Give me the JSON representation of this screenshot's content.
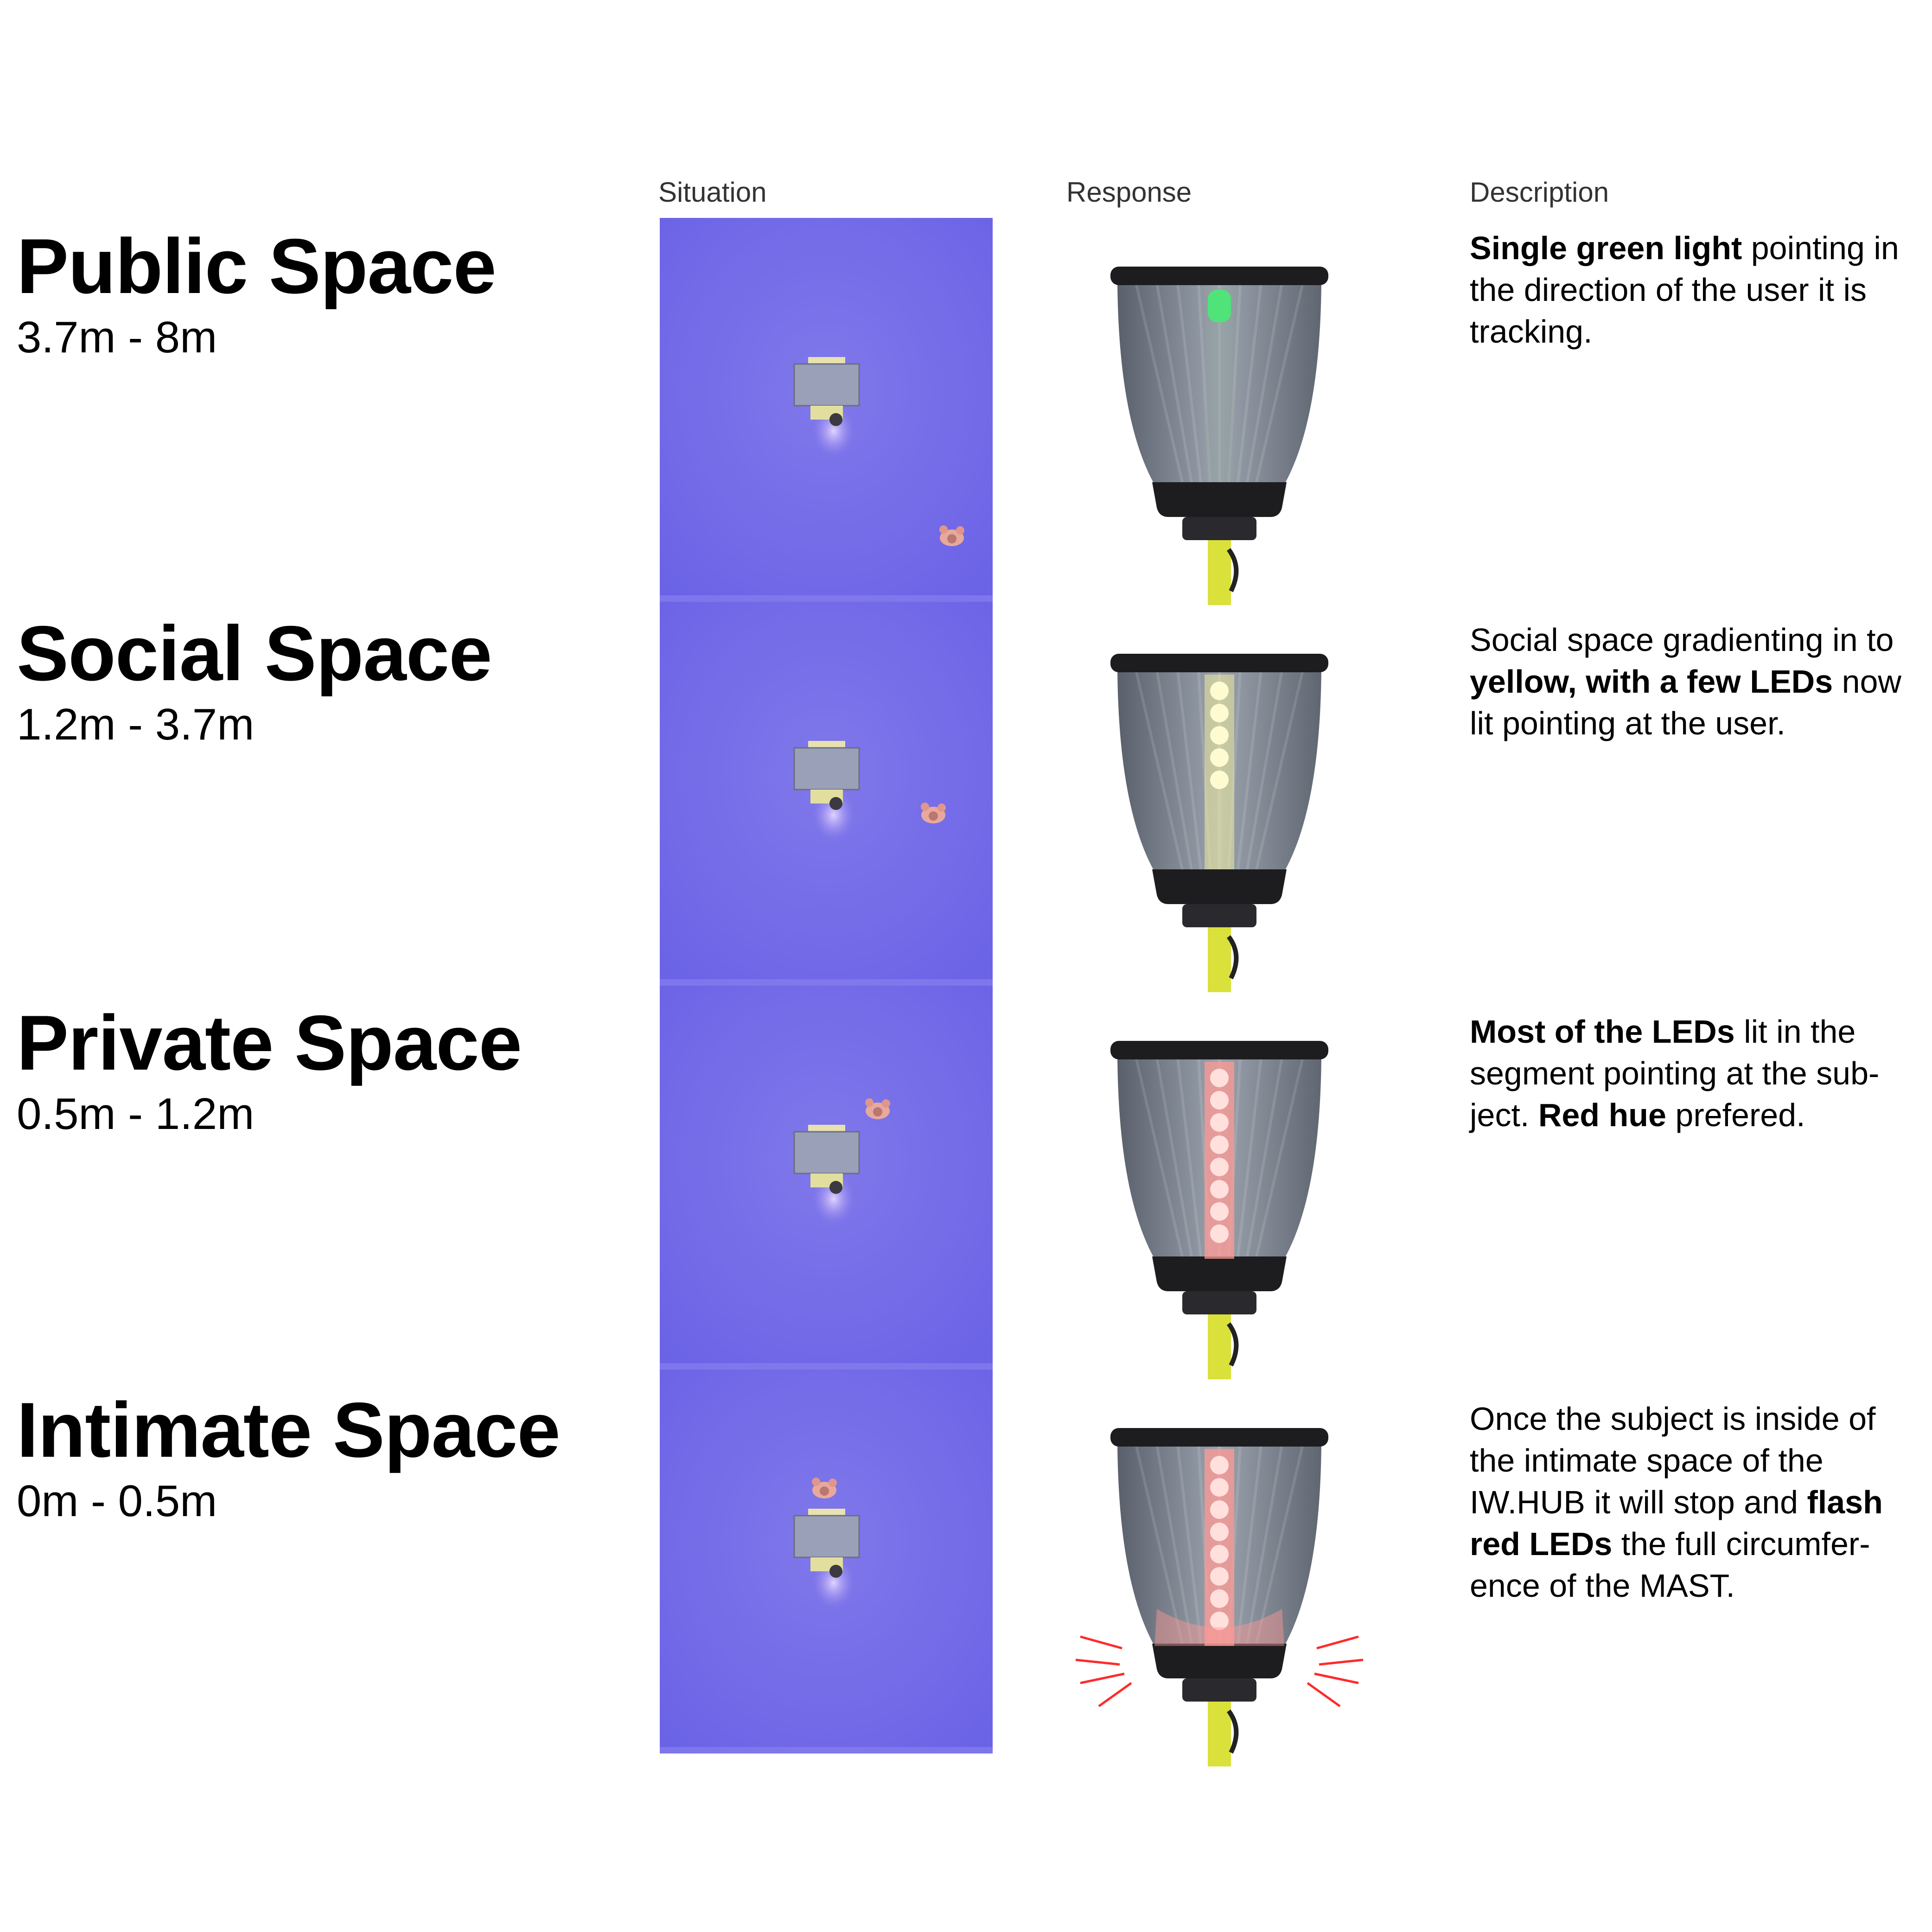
{
  "columns": {
    "situation": "Situation",
    "response": "Response",
    "description": "Description"
  },
  "colors": {
    "floor": "#6b63e6",
    "floor_light": "#8078ea",
    "shell": "#7f8794",
    "rim": "#1d1d1f",
    "pole": "#d9e13a",
    "green": "#4fe37a",
    "yellow": "#f4f29a",
    "red": "#ff9a94",
    "flash": "#ff2a2a"
  },
  "zones": [
    {
      "title": "Public Space",
      "range": "3.7m - 8m",
      "light": "green",
      "description": [
        {
          "text": "Single green light",
          "bold": true
        },
        {
          "text": " pointing in the direction of the user it is tracking.",
          "bold": false
        }
      ]
    },
    {
      "title": "Social Space",
      "range": "1.2m - 3.7m",
      "light": "yellow",
      "description": [
        {
          "text": "Social space gradienting in to ",
          "bold": false
        },
        {
          "text": "yellow, with a few LEDs",
          "bold": true
        },
        {
          "text": " now lit pointing at the user.",
          "bold": false
        }
      ]
    },
    {
      "title": "Private Space",
      "range": "0.5m - 1.2m",
      "light": "red",
      "description": [
        {
          "text": "Most of the LEDs",
          "bold": true
        },
        {
          "text": " lit in the segment pointing at the sub-ject. ",
          "bold": false
        },
        {
          "text": "Red hue",
          "bold": true
        },
        {
          "text": " prefered.",
          "bold": false
        }
      ]
    },
    {
      "title": "Intimate Space",
      "range": "0m - 0.5m",
      "light": "red-flash",
      "description": [
        {
          "text": "Once the subject is inside of the intimate space of the IW.HUB it will stop and ",
          "bold": false
        },
        {
          "text": "flash red LEDs",
          "bold": true
        },
        {
          "text": " the full circumfer-ence of the MAST.",
          "bold": false
        }
      ]
    }
  ]
}
